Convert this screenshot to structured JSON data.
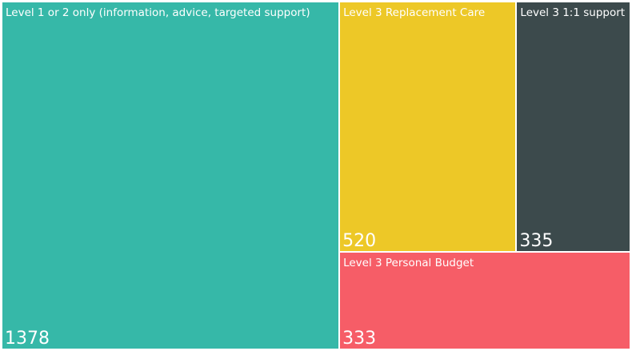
{
  "chart_data": {
    "type": "treemap",
    "items": [
      {
        "label": "Level 1 or 2 only (information, advice, targeted support)",
        "value": 1378,
        "color": "#36B8A8"
      },
      {
        "label": "Level 3 Replacement Care",
        "value": 520,
        "color": "#EDC827"
      },
      {
        "label": "Level 3 1:1 support",
        "value": 335,
        "color": "#3C4A4C"
      },
      {
        "label": "Level 3 Personal Budget",
        "value": 333,
        "color": "#F65D67"
      }
    ]
  }
}
